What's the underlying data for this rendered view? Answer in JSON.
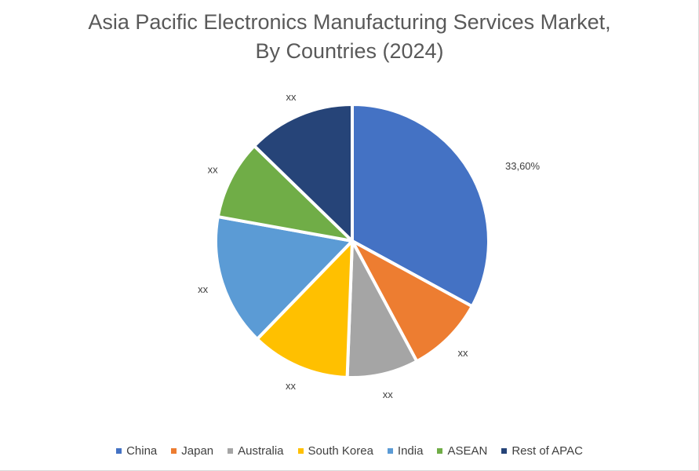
{
  "chart_data": {
    "type": "pie",
    "title": "Asia Pacific Electronics Manufacturing Services Market, By Countries (2024)",
    "title_lines": [
      "Asia Pacific Electronics Manufacturing Services Market,",
      "By Countries (2024)"
    ],
    "legend_position": "bottom",
    "categories": [
      "China",
      "Japan",
      "Australia",
      "South Korea",
      "India",
      "ASEAN",
      "Rest of APAC"
    ],
    "values": [
      33.6,
      9.4,
      8.6,
      11.9,
      15.9,
      9.6,
      13.0
    ],
    "data_labels": [
      "33,60%",
      "xx",
      "xx",
      "xx",
      "xx",
      "xx",
      "xx"
    ],
    "colors": [
      "#4472C4",
      "#ED7D31",
      "#A5A5A5",
      "#FFC000",
      "#5B9BD5",
      "#70AD47",
      "#264478"
    ]
  }
}
